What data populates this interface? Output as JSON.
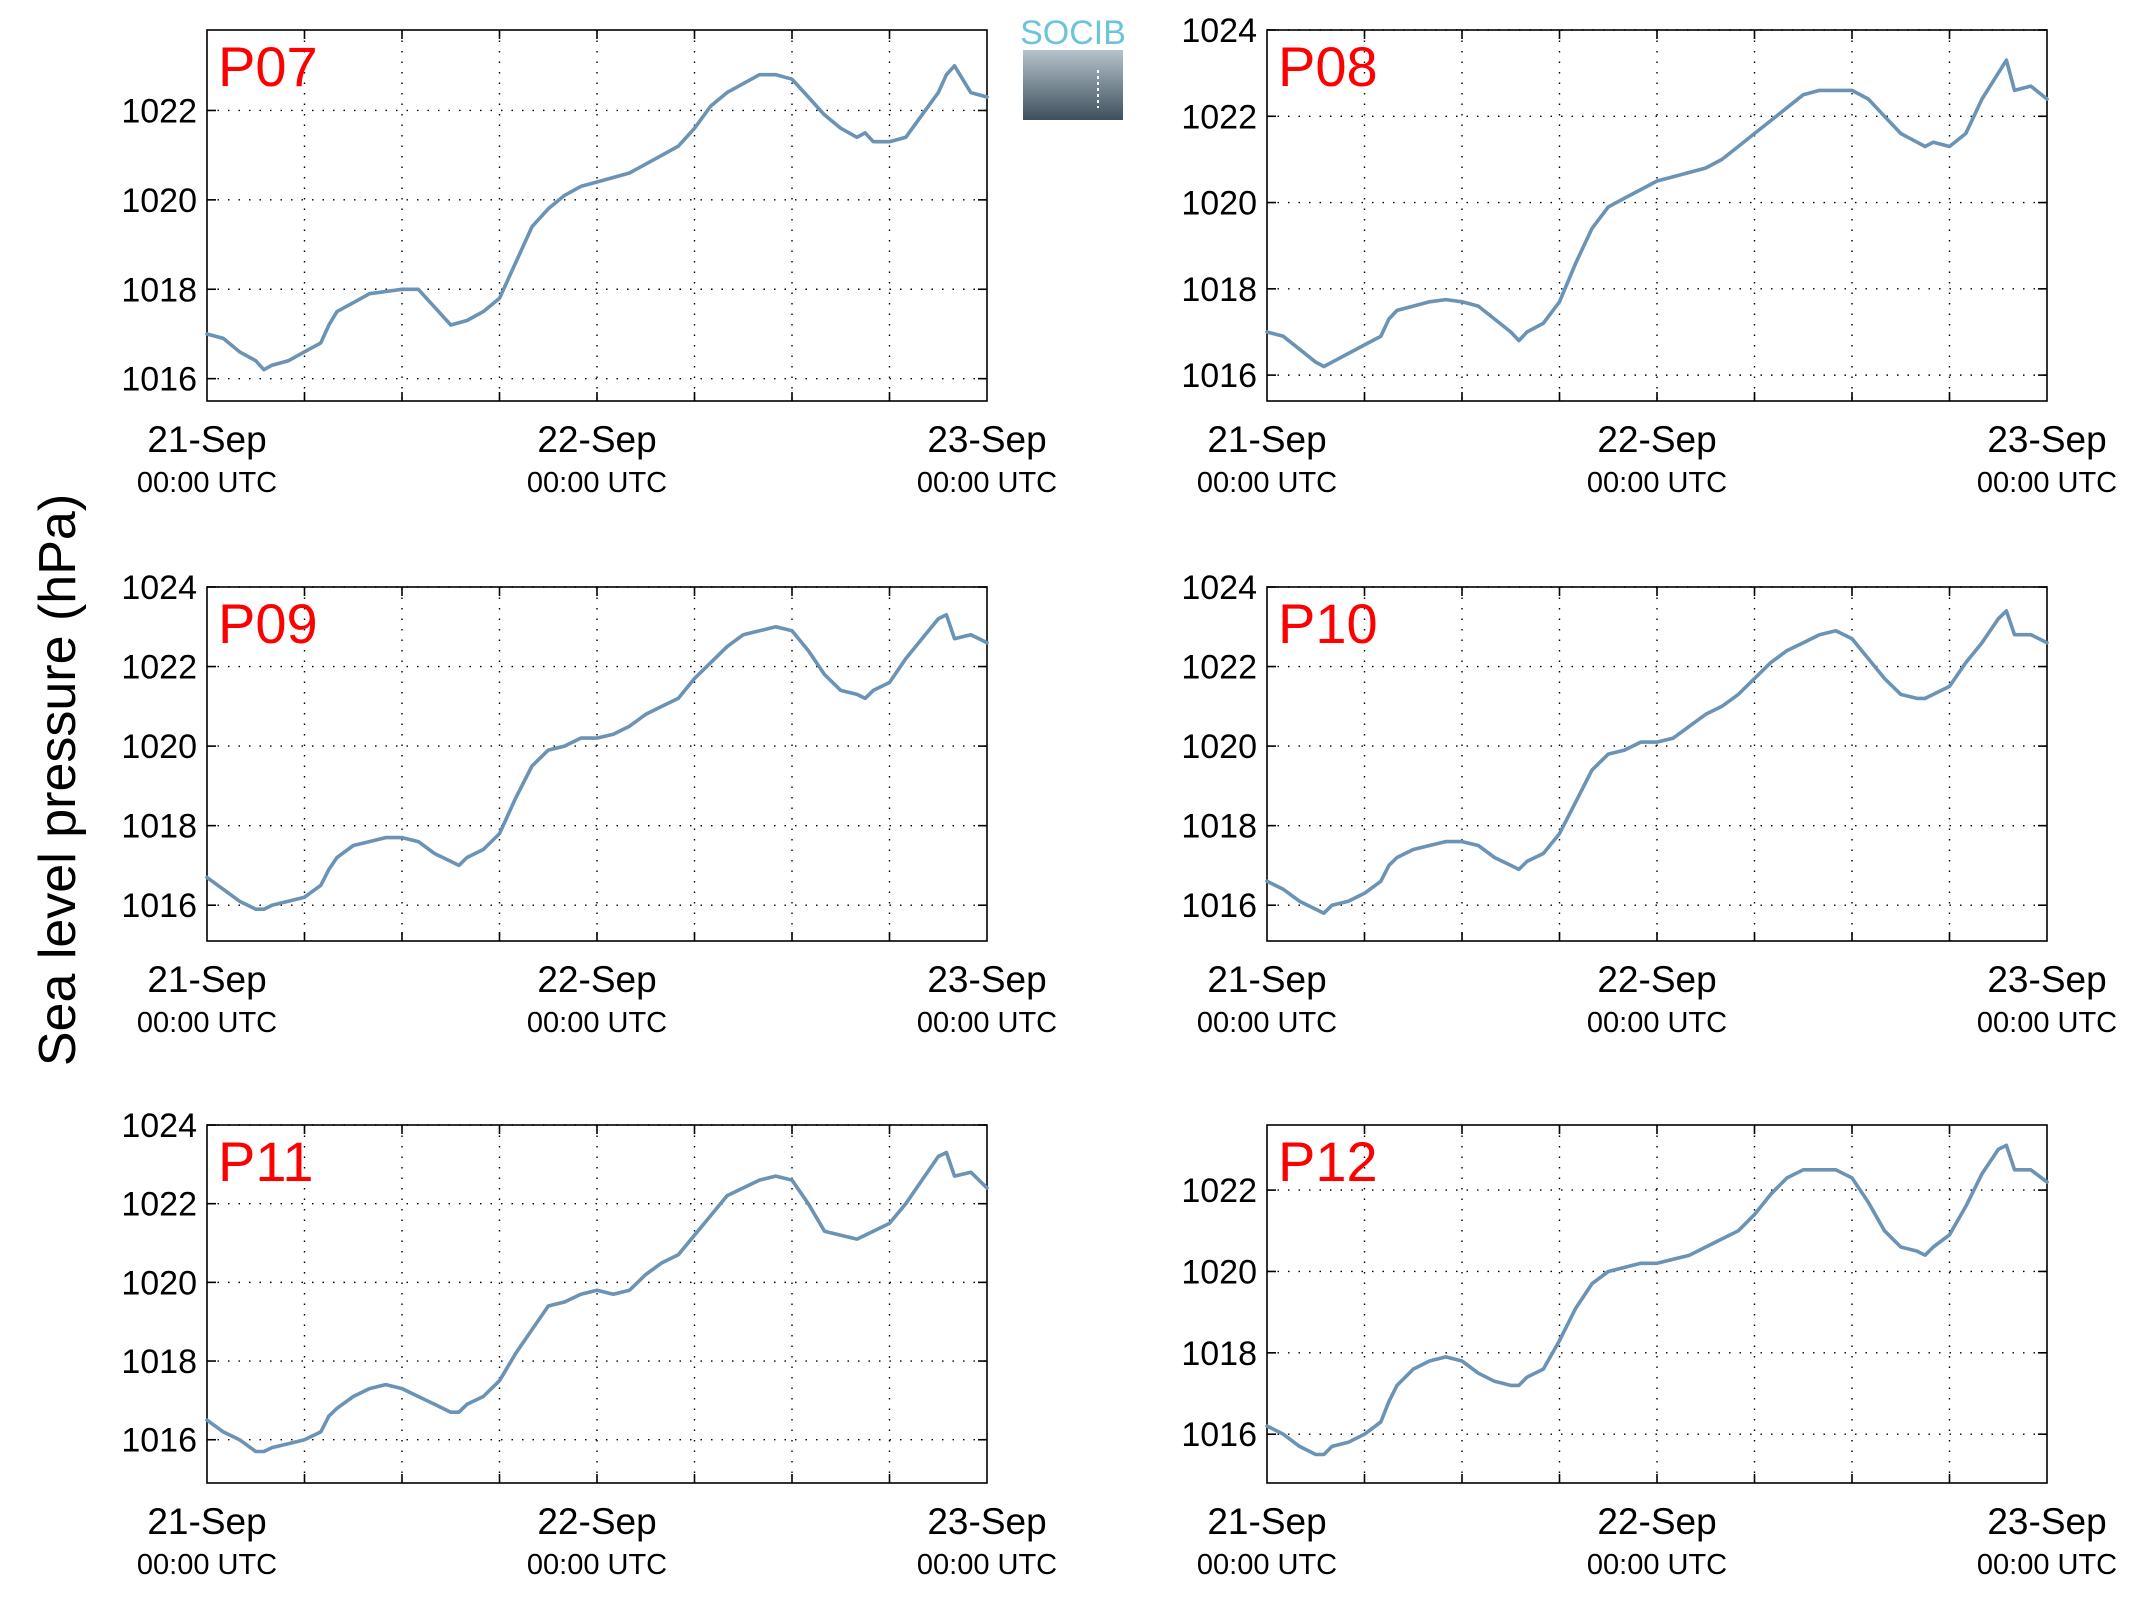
{
  "figure": {
    "ylabel": "Sea level pressure (hPa)",
    "logo_text": "SOCIB",
    "line_color": "#6a93b5",
    "label_color": "#ff0000"
  },
  "chart_data": [
    {
      "type": "line",
      "title": "P07",
      "ylabel": "Sea level pressure (hPa)",
      "x_ticks": [
        "21-Sep 00:00 UTC",
        "22-Sep 00:00 UTC",
        "23-Sep 00:00 UTC"
      ],
      "x_unit": "hours since 21-Sep 00:00 UTC",
      "xlim": [
        0,
        48
      ],
      "ylim": [
        1015.5,
        1023.8
      ],
      "yticks": [
        1016,
        1018,
        1020,
        1022
      ],
      "grid": true,
      "series": [
        {
          "x": [
            0,
            1,
            2,
            3,
            3.5,
            4,
            5,
            6,
            7,
            7.5,
            8,
            9,
            10,
            11,
            12,
            13,
            14,
            15,
            16,
            17,
            18,
            19,
            20,
            21,
            22,
            23,
            24,
            25,
            26,
            27,
            28,
            29,
            30,
            31,
            32,
            33,
            34,
            35,
            36,
            37,
            38,
            39,
            40,
            40.5,
            41,
            42,
            43,
            44,
            45,
            45.5,
            46,
            47,
            48
          ],
          "y": [
            1017.0,
            1016.9,
            1016.6,
            1016.4,
            1016.2,
            1016.3,
            1016.4,
            1016.6,
            1016.8,
            1017.2,
            1017.5,
            1017.7,
            1017.9,
            1017.95,
            1018.0,
            1018.0,
            1017.6,
            1017.2,
            1017.3,
            1017.5,
            1017.8,
            1018.6,
            1019.4,
            1019.8,
            1020.1,
            1020.3,
            1020.4,
            1020.5,
            1020.6,
            1020.8,
            1021.0,
            1021.2,
            1021.6,
            1022.1,
            1022.4,
            1022.6,
            1022.8,
            1022.8,
            1022.7,
            1022.3,
            1021.9,
            1021.6,
            1021.4,
            1021.5,
            1021.3,
            1021.3,
            1021.4,
            1021.9,
            1022.4,
            1022.8,
            1023.0,
            1022.4,
            1022.3
          ]
        }
      ]
    },
    {
      "type": "line",
      "title": "P08",
      "ylabel": "Sea level pressure (hPa)",
      "x_ticks": [
        "21-Sep 00:00 UTC",
        "22-Sep 00:00 UTC",
        "23-Sep 00:00 UTC"
      ],
      "x_unit": "hours since 21-Sep 00:00 UTC",
      "xlim": [
        0,
        48
      ],
      "ylim": [
        1015.4,
        1024
      ],
      "yticks": [
        1016,
        1018,
        1020,
        1022,
        1024
      ],
      "grid": true,
      "series": [
        {
          "x": [
            0,
            1,
            2,
            3,
            3.5,
            4,
            5,
            6,
            7,
            7.5,
            8,
            9,
            10,
            11,
            12,
            13,
            14,
            15,
            15.5,
            16,
            17,
            18,
            19,
            20,
            21,
            22,
            23,
            24,
            25,
            26,
            27,
            28,
            29,
            30,
            31,
            32,
            33,
            34,
            35,
            36,
            37,
            38,
            39,
            40,
            40.5,
            41,
            42,
            43,
            44,
            45,
            45.5,
            46,
            47,
            48
          ],
          "y": [
            1017.0,
            1016.9,
            1016.6,
            1016.3,
            1016.2,
            1016.3,
            1016.5,
            1016.7,
            1016.9,
            1017.3,
            1017.5,
            1017.6,
            1017.7,
            1017.75,
            1017.7,
            1017.6,
            1017.3,
            1017.0,
            1016.8,
            1017.0,
            1017.2,
            1017.7,
            1018.6,
            1019.4,
            1019.9,
            1020.1,
            1020.3,
            1020.5,
            1020.6,
            1020.7,
            1020.8,
            1021.0,
            1021.3,
            1021.6,
            1021.9,
            1022.2,
            1022.5,
            1022.6,
            1022.6,
            1022.6,
            1022.4,
            1022.0,
            1021.6,
            1021.4,
            1021.3,
            1021.4,
            1021.3,
            1021.6,
            1022.4,
            1023.0,
            1023.3,
            1022.6,
            1022.7,
            1022.4
          ]
        }
      ]
    },
    {
      "type": "line",
      "title": "P09",
      "ylabel": "Sea level pressure (hPa)",
      "x_ticks": [
        "21-Sep 00:00 UTC",
        "22-Sep 00:00 UTC",
        "23-Sep 00:00 UTC"
      ],
      "x_unit": "hours since 21-Sep 00:00 UTC",
      "xlim": [
        0,
        48
      ],
      "ylim": [
        1015.1,
        1024
      ],
      "yticks": [
        1016,
        1018,
        1020,
        1022,
        1024
      ],
      "grid": true,
      "series": [
        {
          "x": [
            0,
            1,
            2,
            3,
            3.5,
            4,
            5,
            6,
            7,
            7.5,
            8,
            9,
            10,
            11,
            12,
            13,
            14,
            15,
            15.5,
            16,
            17,
            18,
            19,
            20,
            21,
            22,
            23,
            24,
            25,
            26,
            27,
            28,
            29,
            30,
            31,
            32,
            33,
            34,
            35,
            36,
            37,
            38,
            39,
            40,
            40.5,
            41,
            42,
            43,
            44,
            45,
            45.5,
            46,
            47,
            48
          ],
          "y": [
            1016.7,
            1016.4,
            1016.1,
            1015.9,
            1015.9,
            1016.0,
            1016.1,
            1016.2,
            1016.5,
            1016.9,
            1017.2,
            1017.5,
            1017.6,
            1017.7,
            1017.7,
            1017.6,
            1017.3,
            1017.1,
            1017.0,
            1017.2,
            1017.4,
            1017.8,
            1018.7,
            1019.5,
            1019.9,
            1020.0,
            1020.2,
            1020.2,
            1020.3,
            1020.5,
            1020.8,
            1021.0,
            1021.2,
            1021.7,
            1022.1,
            1022.5,
            1022.8,
            1022.9,
            1023.0,
            1022.9,
            1022.4,
            1021.8,
            1021.4,
            1021.3,
            1021.2,
            1021.4,
            1021.6,
            1022.2,
            1022.7,
            1023.2,
            1023.3,
            1022.7,
            1022.8,
            1022.6
          ]
        }
      ]
    },
    {
      "type": "line",
      "title": "P10",
      "ylabel": "Sea level pressure (hPa)",
      "x_ticks": [
        "21-Sep 00:00 UTC",
        "22-Sep 00:00 UTC",
        "23-Sep 00:00 UTC"
      ],
      "x_unit": "hours since 21-Sep 00:00 UTC",
      "xlim": [
        0,
        48
      ],
      "ylim": [
        1015.1,
        1024
      ],
      "yticks": [
        1016,
        1018,
        1020,
        1022,
        1024
      ],
      "grid": true,
      "series": [
        {
          "x": [
            0,
            1,
            2,
            3,
            3.5,
            4,
            5,
            6,
            7,
            7.5,
            8,
            9,
            10,
            11,
            12,
            13,
            14,
            15,
            15.5,
            16,
            17,
            18,
            19,
            20,
            21,
            22,
            23,
            24,
            25,
            26,
            27,
            28,
            29,
            30,
            31,
            32,
            33,
            34,
            35,
            36,
            37,
            38,
            39,
            40,
            40.5,
            41,
            42,
            43,
            44,
            45,
            45.5,
            46,
            47,
            48
          ],
          "y": [
            1016.6,
            1016.4,
            1016.1,
            1015.9,
            1015.8,
            1016.0,
            1016.1,
            1016.3,
            1016.6,
            1017.0,
            1017.2,
            1017.4,
            1017.5,
            1017.6,
            1017.6,
            1017.5,
            1017.2,
            1017.0,
            1016.9,
            1017.1,
            1017.3,
            1017.8,
            1018.6,
            1019.4,
            1019.8,
            1019.9,
            1020.1,
            1020.1,
            1020.2,
            1020.5,
            1020.8,
            1021.0,
            1021.3,
            1021.7,
            1022.1,
            1022.4,
            1022.6,
            1022.8,
            1022.9,
            1022.7,
            1022.2,
            1021.7,
            1021.3,
            1021.2,
            1021.2,
            1021.3,
            1021.5,
            1022.1,
            1022.6,
            1023.2,
            1023.4,
            1022.8,
            1022.8,
            1022.6
          ]
        }
      ]
    },
    {
      "type": "line",
      "title": "P11",
      "ylabel": "Sea level pressure (hPa)",
      "x_ticks": [
        "21-Sep 00:00 UTC",
        "22-Sep 00:00 UTC",
        "23-Sep 00:00 UTC"
      ],
      "x_unit": "hours since 21-Sep 00:00 UTC",
      "xlim": [
        0,
        48
      ],
      "ylim": [
        1014.9,
        1024
      ],
      "yticks": [
        1016,
        1018,
        1020,
        1022,
        1024
      ],
      "grid": true,
      "series": [
        {
          "x": [
            0,
            1,
            2,
            3,
            3.5,
            4,
            5,
            6,
            7,
            7.5,
            8,
            9,
            10,
            11,
            12,
            13,
            14,
            15,
            15.5,
            16,
            17,
            18,
            19,
            20,
            21,
            22,
            23,
            24,
            25,
            26,
            27,
            28,
            29,
            30,
            31,
            32,
            33,
            34,
            35,
            36,
            37,
            38,
            39,
            40,
            40.5,
            41,
            42,
            43,
            44,
            45,
            45.5,
            46,
            47,
            48
          ],
          "y": [
            1016.5,
            1016.2,
            1016.0,
            1015.7,
            1015.7,
            1015.8,
            1015.9,
            1016.0,
            1016.2,
            1016.6,
            1016.8,
            1017.1,
            1017.3,
            1017.4,
            1017.3,
            1017.1,
            1016.9,
            1016.7,
            1016.7,
            1016.9,
            1017.1,
            1017.5,
            1018.2,
            1018.8,
            1019.4,
            1019.5,
            1019.7,
            1019.8,
            1019.7,
            1019.8,
            1020.2,
            1020.5,
            1020.7,
            1021.2,
            1021.7,
            1022.2,
            1022.4,
            1022.6,
            1022.7,
            1022.6,
            1022.0,
            1021.3,
            1021.2,
            1021.1,
            1021.2,
            1021.3,
            1021.5,
            1022.0,
            1022.6,
            1023.2,
            1023.3,
            1022.7,
            1022.8,
            1022.4
          ]
        }
      ]
    },
    {
      "type": "line",
      "title": "P12",
      "ylabel": "Sea level pressure (hPa)",
      "x_ticks": [
        "21-Sep 00:00 UTC",
        "22-Sep 00:00 UTC",
        "23-Sep 00:00 UTC"
      ],
      "x_unit": "hours since 21-Sep 00:00 UTC",
      "xlim": [
        0,
        48
      ],
      "ylim": [
        1014.8,
        1023.6
      ],
      "yticks": [
        1016,
        1018,
        1020,
        1022
      ],
      "grid": true,
      "series": [
        {
          "x": [
            0,
            1,
            2,
            3,
            3.5,
            4,
            5,
            6,
            7,
            7.5,
            8,
            9,
            10,
            11,
            12,
            13,
            14,
            15,
            15.5,
            16,
            17,
            18,
            19,
            20,
            21,
            22,
            23,
            24,
            25,
            26,
            27,
            28,
            29,
            30,
            31,
            32,
            33,
            34,
            35,
            36,
            37,
            38,
            39,
            40,
            40.5,
            41,
            42,
            43,
            44,
            45,
            45.5,
            46,
            47,
            48
          ],
          "y": [
            1016.2,
            1016.0,
            1015.7,
            1015.5,
            1015.5,
            1015.7,
            1015.8,
            1016.0,
            1016.3,
            1016.8,
            1017.2,
            1017.6,
            1017.8,
            1017.9,
            1017.8,
            1017.5,
            1017.3,
            1017.2,
            1017.2,
            1017.4,
            1017.6,
            1018.3,
            1019.1,
            1019.7,
            1020.0,
            1020.1,
            1020.2,
            1020.2,
            1020.3,
            1020.4,
            1020.6,
            1020.8,
            1021.0,
            1021.4,
            1021.9,
            1022.3,
            1022.5,
            1022.5,
            1022.5,
            1022.3,
            1021.7,
            1021.0,
            1020.6,
            1020.5,
            1020.4,
            1020.6,
            1020.9,
            1021.6,
            1022.4,
            1023.0,
            1023.1,
            1022.5,
            1022.5,
            1022.2
          ]
        }
      ]
    }
  ]
}
